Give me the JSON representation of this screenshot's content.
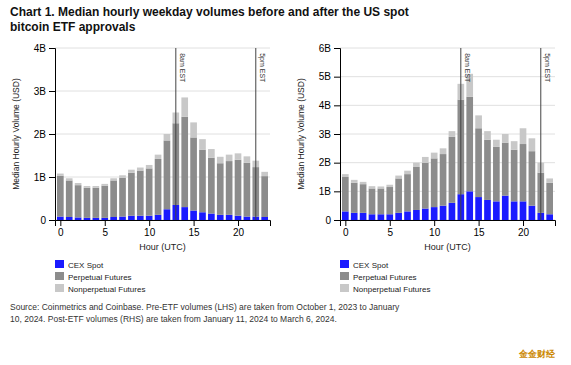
{
  "chart_data": [
    {
      "type": "bar",
      "stacked": true,
      "title": "Chart 1. Median hourly weekday volumes before and after the US spot\nbitcoin ETF approvals",
      "source": "Source: Coinmetrics and Coinbase. Pre-ETF volumes (LHS) are taken from October 1, 2023 to January\n10, 2024. Post-ETF volumes (RHS) are taken from January 11, 2024 to March 6, 2024.",
      "watermark": "金金财经",
      "x": [
        0,
        1,
        2,
        3,
        4,
        5,
        6,
        7,
        8,
        9,
        10,
        11,
        12,
        13,
        14,
        15,
        16,
        17,
        18,
        19,
        20,
        21,
        22,
        23
      ],
      "series": [
        {
          "name": "CEX Spot",
          "color": "#1a1aff",
          "values": [
            0.08,
            0.07,
            0.06,
            0.05,
            0.05,
            0.05,
            0.07,
            0.08,
            0.1,
            0.1,
            0.1,
            0.12,
            0.25,
            0.35,
            0.3,
            0.22,
            0.18,
            0.15,
            0.12,
            0.12,
            0.1,
            0.08,
            0.08,
            0.07
          ]
        },
        {
          "name": "Perpetual Futures",
          "color": "#8c8c8c",
          "values": [
            0.95,
            0.85,
            0.75,
            0.7,
            0.7,
            0.75,
            0.85,
            0.9,
            1.0,
            1.05,
            1.1,
            1.3,
            1.6,
            1.9,
            2.1,
            1.7,
            1.45,
            1.3,
            1.2,
            1.25,
            1.3,
            1.25,
            1.15,
            0.95
          ]
        },
        {
          "name": "Nonperpetual Futures",
          "color": "#c8c8c8",
          "values": [
            0.05,
            0.05,
            0.05,
            0.04,
            0.04,
            0.04,
            0.05,
            0.06,
            0.07,
            0.07,
            0.08,
            0.1,
            0.15,
            0.25,
            0.45,
            0.35,
            0.25,
            0.2,
            0.15,
            0.15,
            0.15,
            0.15,
            0.15,
            0.1
          ]
        }
      ],
      "vlines": [
        {
          "x": 13,
          "label": "8am EST"
        },
        {
          "x": 22,
          "label": "5pm EST"
        }
      ],
      "xlabel": "Hour (UTC)",
      "ylabel": "Median Hourly Volume (USD)",
      "xlim": [
        -0.6,
        23.6
      ],
      "xticks": [
        0,
        5,
        10,
        15,
        20
      ],
      "ylim": [
        0,
        4.0
      ],
      "yticks": [
        0,
        {
          "value": 1,
          "label": "1B"
        },
        {
          "value": 2,
          "label": "2B"
        },
        {
          "value": 3,
          "label": "3B"
        },
        {
          "value": 4,
          "label": "4B"
        }
      ],
      "grid": true,
      "legend": "bottom"
    },
    {
      "type": "bar",
      "stacked": true,
      "x": [
        0,
        1,
        2,
        3,
        4,
        5,
        6,
        7,
        8,
        9,
        10,
        11,
        12,
        13,
        14,
        15,
        16,
        17,
        18,
        19,
        20,
        21,
        22,
        23
      ],
      "series": [
        {
          "name": "CEX Spot",
          "color": "#1a1aff",
          "values": [
            0.3,
            0.25,
            0.25,
            0.2,
            0.2,
            0.2,
            0.25,
            0.3,
            0.35,
            0.4,
            0.45,
            0.5,
            0.6,
            0.9,
            1.0,
            0.8,
            0.7,
            0.65,
            0.85,
            0.65,
            0.65,
            0.5,
            0.25,
            0.2
          ]
        },
        {
          "name": "Perpetual Futures",
          "color": "#8c8c8c",
          "values": [
            1.2,
            1.05,
            1.0,
            0.9,
            0.9,
            0.95,
            1.2,
            1.3,
            1.5,
            1.6,
            1.7,
            1.8,
            2.3,
            3.3,
            3.3,
            2.4,
            2.1,
            1.9,
            1.85,
            1.8,
            2.0,
            1.9,
            1.4,
            1.1
          ]
        },
        {
          "name": "Nonperpetual Futures",
          "color": "#c8c8c8",
          "values": [
            0.1,
            0.1,
            0.08,
            0.08,
            0.07,
            0.08,
            0.1,
            0.12,
            0.15,
            0.2,
            0.2,
            0.2,
            0.2,
            0.55,
            0.8,
            0.45,
            0.3,
            0.25,
            0.3,
            0.3,
            0.55,
            0.45,
            0.35,
            0.15
          ]
        }
      ],
      "vlines": [
        {
          "x": 13,
          "label": "8am EST"
        },
        {
          "x": 22,
          "label": "5pm EST"
        }
      ],
      "xlabel": "Hour (UTC)",
      "ylabel": "Median Hourly Volume (USD)",
      "xlim": [
        -0.6,
        23.6
      ],
      "xticks": [
        0,
        5,
        10,
        15,
        20
      ],
      "ylim": [
        0,
        6
      ],
      "yticks": [
        0,
        {
          "value": 1,
          "label": "1B"
        },
        {
          "value": 2,
          "label": "2B"
        },
        {
          "value": 3,
          "label": "3B"
        },
        {
          "value": 4,
          "label": "4B"
        },
        {
          "value": 5,
          "label": "5B"
        },
        {
          "value": 6,
          "label": "6B"
        }
      ],
      "grid": true,
      "legend": "bottom"
    }
  ]
}
